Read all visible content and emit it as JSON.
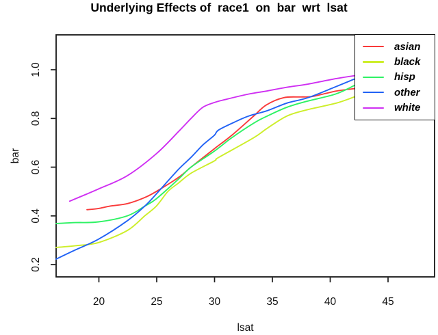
{
  "chart_data": {
    "type": "line",
    "title": "Underlying Effects of  race1  on  bar  wrt  lsat",
    "xlabel": "lsat",
    "ylabel": "bar",
    "x_ticks": [
      20,
      25,
      30,
      35,
      40,
      45
    ],
    "x_tick_labels": [
      "20",
      "25",
      "30",
      "35",
      "40",
      "45"
    ],
    "y_ticks": [
      0.2,
      0.4,
      0.6,
      0.8,
      1.0
    ],
    "y_tick_labels": [
      "0.2",
      "0.4",
      "0.6",
      "0.8",
      "1.0"
    ],
    "xlim": [
      16.33,
      49.05
    ],
    "ylim": [
      0.149,
      1.143
    ],
    "grid": false,
    "legend_position": "top-right",
    "series": [
      {
        "name": "asian",
        "color": "#f93a3a",
        "points": [
          [
            19,
            0.425
          ],
          [
            20,
            0.43
          ],
          [
            21,
            0.44
          ],
          [
            22.5,
            0.45
          ],
          [
            24,
            0.475
          ],
          [
            25,
            0.5
          ],
          [
            26.9,
            0.557
          ],
          [
            28,
            0.6
          ],
          [
            30,
            0.675
          ],
          [
            31.5,
            0.73
          ],
          [
            33.3,
            0.805
          ],
          [
            34.5,
            0.855
          ],
          [
            36,
            0.885
          ],
          [
            37.5,
            0.888
          ],
          [
            38.5,
            0.89
          ],
          [
            40.5,
            0.912
          ],
          [
            42.1,
            0.922
          ]
        ]
      },
      {
        "name": "black",
        "color": "#cdee29",
        "points": [
          [
            16.33,
            0.27
          ],
          [
            18,
            0.277
          ],
          [
            20,
            0.29
          ],
          [
            22.5,
            0.34
          ],
          [
            24,
            0.4
          ],
          [
            25,
            0.44
          ],
          [
            26,
            0.5
          ],
          [
            26.9,
            0.534
          ],
          [
            28,
            0.575
          ],
          [
            30,
            0.625
          ],
          [
            30.4,
            0.64
          ],
          [
            33.4,
            0.72
          ],
          [
            34.6,
            0.76
          ],
          [
            36.3,
            0.81
          ],
          [
            38,
            0.835
          ],
          [
            40.5,
            0.862
          ],
          [
            42.1,
            0.888
          ]
        ]
      },
      {
        "name": "hisp",
        "color": "#2ef264",
        "points": [
          [
            16.33,
            0.368
          ],
          [
            18,
            0.372
          ],
          [
            20,
            0.375
          ],
          [
            22.5,
            0.4
          ],
          [
            24,
            0.44
          ],
          [
            25,
            0.47
          ],
          [
            26.9,
            0.55
          ],
          [
            28,
            0.6
          ],
          [
            30,
            0.665
          ],
          [
            31.5,
            0.72
          ],
          [
            33.4,
            0.78
          ],
          [
            34.6,
            0.81
          ],
          [
            36.3,
            0.846
          ],
          [
            38,
            0.87
          ],
          [
            40.5,
            0.9
          ],
          [
            42.1,
            0.935
          ]
        ]
      },
      {
        "name": "other",
        "color": "#2162f5",
        "points": [
          [
            16.33,
            0.222
          ],
          [
            18,
            0.26
          ],
          [
            20,
            0.304
          ],
          [
            22.5,
            0.38
          ],
          [
            24,
            0.44
          ],
          [
            25,
            0.49
          ],
          [
            26.9,
            0.59
          ],
          [
            28,
            0.64
          ],
          [
            29,
            0.69
          ],
          [
            30,
            0.73
          ],
          [
            30.4,
            0.753
          ],
          [
            32,
            0.79
          ],
          [
            33,
            0.81
          ],
          [
            34.6,
            0.832
          ],
          [
            36.3,
            0.863
          ],
          [
            38.1,
            0.885
          ],
          [
            40.5,
            0.93
          ],
          [
            42.1,
            0.961
          ]
        ]
      },
      {
        "name": "white",
        "color": "#cf2ff2",
        "points": [
          [
            17.5,
            0.46
          ],
          [
            20,
            0.51
          ],
          [
            22.5,
            0.565
          ],
          [
            25,
            0.655
          ],
          [
            26.9,
            0.745
          ],
          [
            28,
            0.8
          ],
          [
            29,
            0.845
          ],
          [
            30,
            0.865
          ],
          [
            31,
            0.878
          ],
          [
            33,
            0.9
          ],
          [
            34.6,
            0.913
          ],
          [
            36.3,
            0.928
          ],
          [
            38,
            0.94
          ],
          [
            40.5,
            0.963
          ],
          [
            42.1,
            0.975
          ]
        ]
      }
    ]
  }
}
